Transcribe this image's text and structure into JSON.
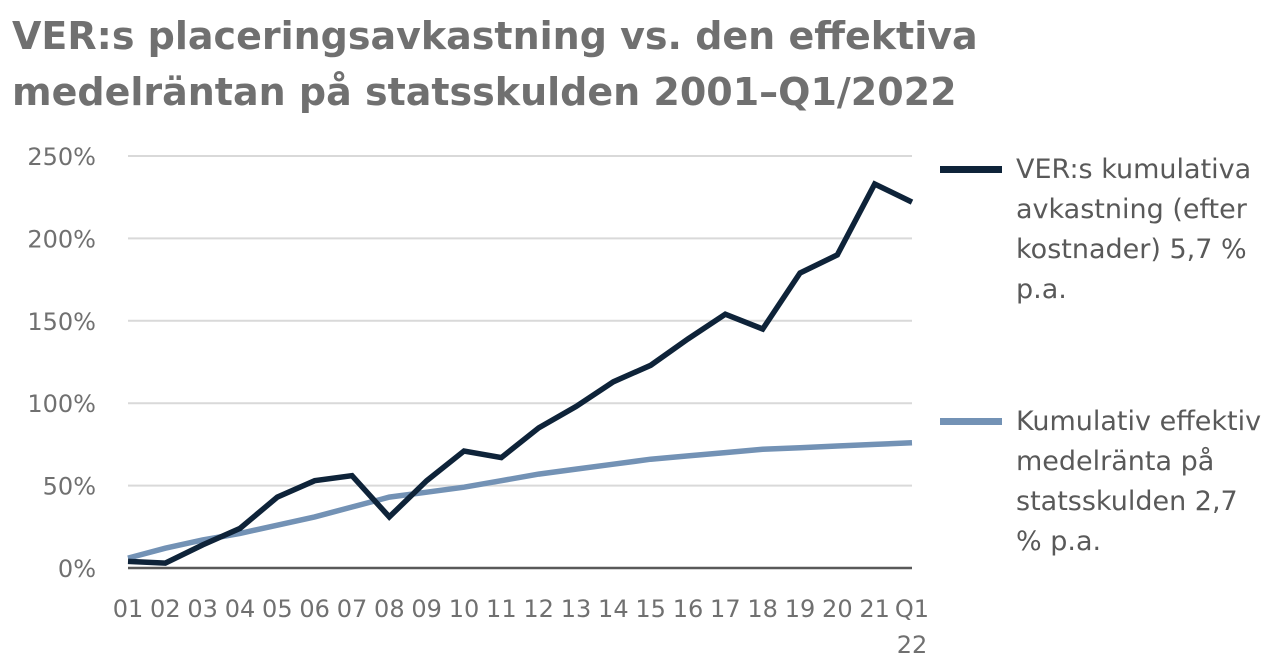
{
  "title_lines": [
    "VER:s placeringsavkastning vs. den effektiva",
    "medelräntan på statsskulden 2001–Q1/2022"
  ],
  "chart_data": {
    "type": "line",
    "title": "VER:s placeringsavkastning vs. den effektiva medelräntan på statsskulden 2001–Q1/2022",
    "xlabel": "",
    "ylabel": "",
    "x": [
      "01",
      "02",
      "03",
      "04",
      "05",
      "06",
      "07",
      "08",
      "09",
      "10",
      "11",
      "12",
      "13",
      "14",
      "15",
      "16",
      "17",
      "18",
      "19",
      "20",
      "21",
      "Q1 22"
    ],
    "x_tick_labels": [
      [
        "01"
      ],
      [
        "02"
      ],
      [
        "03"
      ],
      [
        "04"
      ],
      [
        "05"
      ],
      [
        "06"
      ],
      [
        "07"
      ],
      [
        "08"
      ],
      [
        "09"
      ],
      [
        "10"
      ],
      [
        "11"
      ],
      [
        "12"
      ],
      [
        "13"
      ],
      [
        "14"
      ],
      [
        "15"
      ],
      [
        "16"
      ],
      [
        "17"
      ],
      [
        "18"
      ],
      [
        "19"
      ],
      [
        "20"
      ],
      [
        "21"
      ],
      [
        "Q1",
        "22"
      ]
    ],
    "ylim": [
      0,
      250
    ],
    "yticks": [
      0,
      50,
      100,
      150,
      200,
      250
    ],
    "ytick_labels": [
      "0%",
      "50%",
      "100%",
      "150%",
      "200%",
      "250%"
    ],
    "grid": true,
    "legend_position": "right",
    "series": [
      {
        "name": "VER:s kumulativa avkastning (efter kostnader) 5,7 % p.a.",
        "color": "#0e2339",
        "values": [
          4,
          3,
          14,
          24,
          43,
          53,
          56,
          31,
          53,
          71,
          67,
          85,
          98,
          113,
          123,
          139,
          154,
          145,
          179,
          190,
          233,
          222
        ]
      },
      {
        "name": "Kumulativ effektiv medelränta på statsskulden 2,7 % p.a.",
        "color": "#7392b5",
        "values": [
          6,
          12,
          17,
          21,
          26,
          31,
          37,
          43,
          46,
          49,
          53,
          57,
          60,
          63,
          66,
          68,
          70,
          72,
          73,
          74,
          75,
          76
        ]
      }
    ]
  }
}
